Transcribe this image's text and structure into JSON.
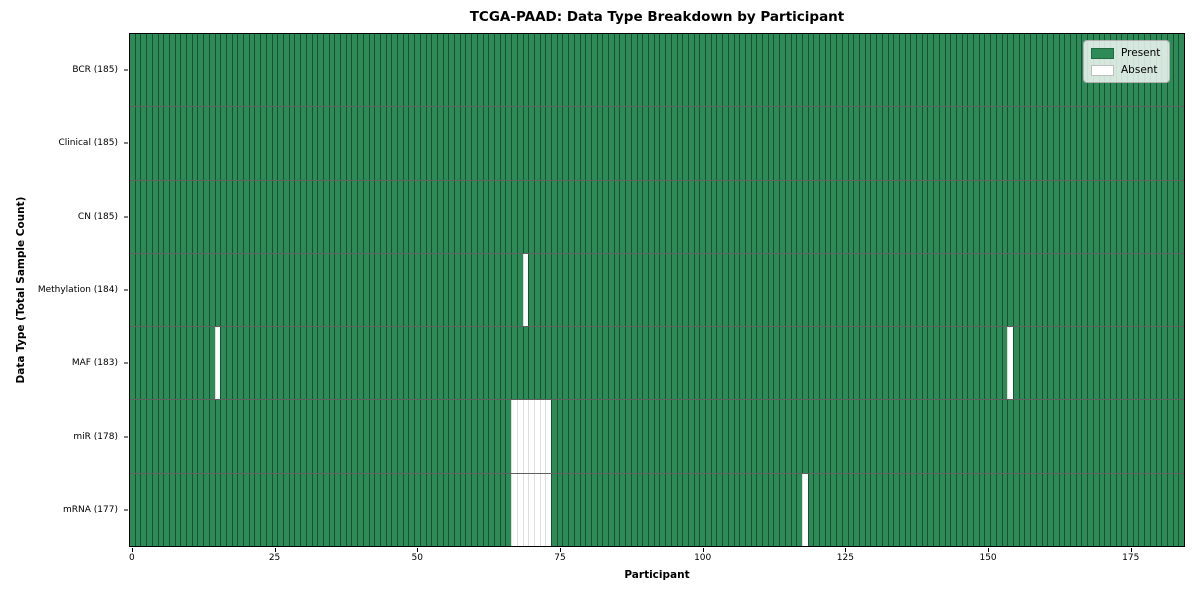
{
  "title": "TCGA-PAAD: Data Type Breakdown by Participant",
  "xlabel": "Participant",
  "ylabel": "Data Type (Total Sample Count)",
  "legend": [
    {
      "label": "Present",
      "color": "#2e8b57"
    },
    {
      "label": "Absent",
      "color": "#ffffff"
    }
  ],
  "chart_data": {
    "type": "heatmap",
    "title": "TCGA-PAAD: Data Type Breakdown by Participant",
    "xlabel": "Participant",
    "ylabel": "Data Type (Total Sample Count)",
    "n_participants": 185,
    "x_ticks": [
      0,
      25,
      50,
      75,
      100,
      125,
      150,
      175
    ],
    "colors": {
      "present": "#2e8b57",
      "absent": "#ffffff"
    },
    "legend_position": "upper right",
    "grid": false,
    "rows": [
      {
        "label": "BCR (185)",
        "name": "bcr",
        "present_count": 185,
        "absent_participants": []
      },
      {
        "label": "Clinical (185)",
        "name": "clinical",
        "present_count": 185,
        "absent_participants": []
      },
      {
        "label": "CN (185)",
        "name": "cn",
        "present_count": 185,
        "absent_participants": []
      },
      {
        "label": "Methylation (184)",
        "name": "methylation",
        "present_count": 184,
        "absent_participants": [
          69
        ]
      },
      {
        "label": "MAF (183)",
        "name": "maf",
        "present_count": 183,
        "absent_participants": [
          15,
          154
        ]
      },
      {
        "label": "miR (178)",
        "name": "mir",
        "present_count": 178,
        "absent_participants": [
          67,
          68,
          69,
          70,
          71,
          72,
          73
        ]
      },
      {
        "label": "mRNA (177)",
        "name": "mrna",
        "present_count": 177,
        "absent_participants": [
          67,
          68,
          69,
          70,
          71,
          72,
          73,
          118
        ]
      }
    ]
  }
}
